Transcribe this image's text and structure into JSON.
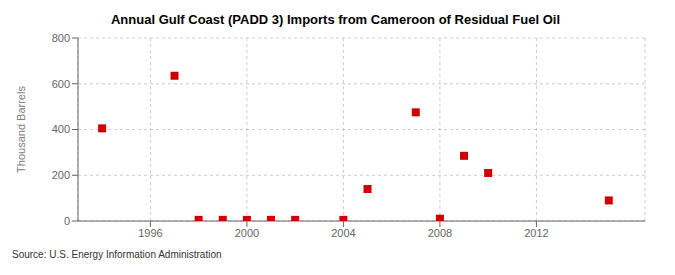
{
  "chart_data": {
    "type": "scatter",
    "title": "Annual Gulf Coast (PADD 3) Imports from Cameroon of Residual Fuel Oil",
    "ylabel": "Thousand Barrels",
    "annotations": [
      "Source: U.S. Energy Information Administration"
    ],
    "x": [
      1994,
      1997,
      1998,
      1999,
      2000,
      2001,
      2002,
      2004,
      2005,
      2007,
      2008,
      2009,
      2010,
      2015
    ],
    "values": [
      405,
      635,
      5,
      5,
      5,
      5,
      5,
      5,
      140,
      475,
      10,
      285,
      210,
      90
    ],
    "color": "#cc0000",
    "marker": "square",
    "xlim": [
      1993,
      2016.5
    ],
    "xticks": [
      1996,
      2000,
      2004,
      2008,
      2012
    ],
    "ylim": [
      0,
      800
    ],
    "yticks": [
      0,
      200,
      400,
      600,
      800
    ],
    "grid": true
  }
}
